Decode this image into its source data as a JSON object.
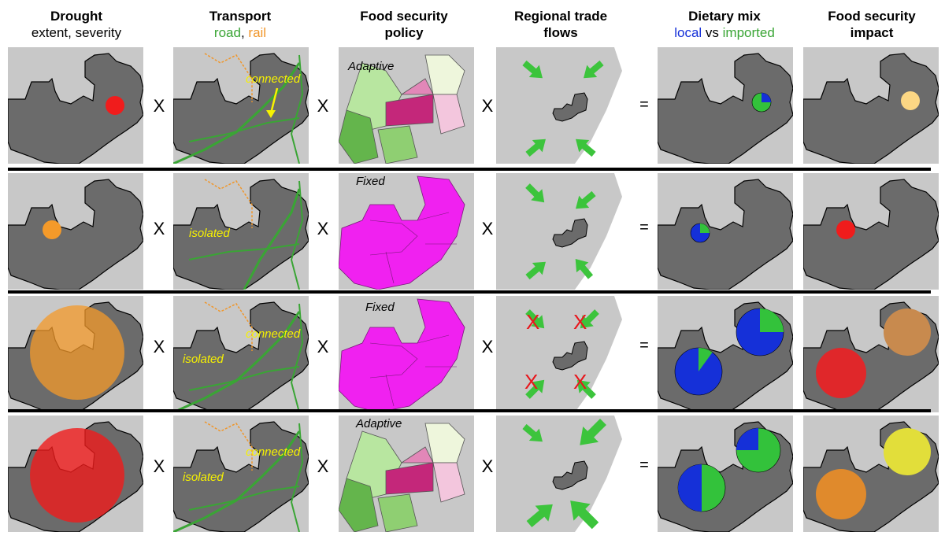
{
  "headers": {
    "drought": {
      "title": "Drought",
      "subtitle": "extent, severity"
    },
    "transport": {
      "title": "Transport",
      "road": "road",
      "comma": ", ",
      "rail": "rail"
    },
    "policy": {
      "title_line1": "Food security",
      "title_line2": "policy"
    },
    "trade": {
      "title_line1": "Regional trade",
      "title_line2": "flows"
    },
    "diet": {
      "title": "Dietary mix",
      "local": "local",
      "vs": " vs ",
      "imported": "imported"
    },
    "impact": {
      "title_line1": "Food security",
      "title_line2": "impact"
    }
  },
  "operators": {
    "times": "X",
    "equals": "="
  },
  "labels": {
    "connected": "connected",
    "isolated": "isolated",
    "adaptive": "Adaptive",
    "fixed": "Fixed",
    "blocked": "X"
  },
  "rows": [
    {
      "policy": "Adaptive",
      "transport": [
        "connected"
      ],
      "trade": "open",
      "diet_pies": [
        {
          "local_fraction": 0.25
        }
      ],
      "impact": [
        "light-yellow"
      ]
    },
    {
      "policy": "Fixed",
      "transport": [
        "isolated"
      ],
      "trade": "open",
      "diet_pies": [
        {
          "local_fraction": 0.75
        }
      ],
      "impact": [
        "red"
      ]
    },
    {
      "policy": "Fixed",
      "transport": [
        "connected",
        "isolated"
      ],
      "trade": "blocked",
      "diet_pies": [
        {
          "local_fraction": 0.75
        },
        {
          "local_fraction": 0.9
        }
      ],
      "impact": [
        "brown",
        "red"
      ]
    },
    {
      "policy": "Adaptive",
      "transport": [
        "connected",
        "isolated"
      ],
      "trade": "open-strong",
      "diet_pies": [
        {
          "local_fraction": 0.25
        },
        {
          "local_fraction": 0.5
        }
      ],
      "impact": [
        "yellow",
        "orange"
      ]
    }
  ],
  "colors": {
    "map_bg": "#c8c8c8",
    "country": "#6b6b6b",
    "road": "#3aa535",
    "rail": "#f0962a",
    "local": "#1530d8",
    "imported": "#33c23b",
    "arrow": "#3cc43c",
    "magenta": "#f021f0",
    "red": "#f01c1c",
    "orange": "#f49a2a",
    "light_yellow": "#fcd784",
    "yellow": "#e2de3a",
    "brown": "#c88a4e"
  }
}
